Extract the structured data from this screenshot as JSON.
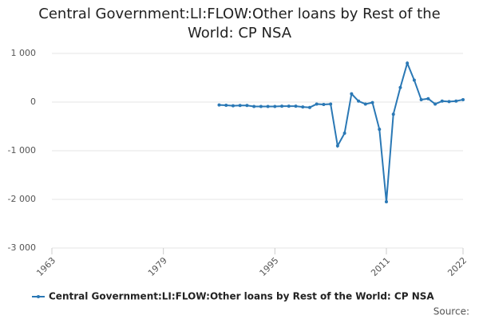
{
  "chart_data": {
    "type": "line",
    "title": "Central Government:LI:FLOW:Other loans by Rest of the World: CP NSA",
    "x": [
      1987,
      1988,
      1989,
      1990,
      1991,
      1992,
      1993,
      1994,
      1995,
      1996,
      1997,
      1998,
      1999,
      2000,
      2001,
      2002,
      2003,
      2004,
      2005,
      2006,
      2007,
      2008,
      2009,
      2010,
      2011,
      2012,
      2013,
      2014,
      2015,
      2016,
      2017,
      2018,
      2019,
      2020,
      2021,
      2022
    ],
    "series": [
      {
        "name": "Central Government:LI:FLOW:Other loans by Rest of the World: CP NSA",
        "color": "#2a78b5",
        "values": [
          -60,
          -65,
          -75,
          -70,
          -70,
          -90,
          -90,
          -90,
          -90,
          -85,
          -85,
          -85,
          -100,
          -110,
          -40,
          -50,
          -40,
          -900,
          -640,
          170,
          20,
          -40,
          -10,
          -560,
          -2050,
          -250,
          300,
          800,
          450,
          50,
          70,
          -40,
          20,
          10,
          20,
          50
        ]
      }
    ],
    "xlim": [
      1963,
      2022
    ],
    "xticks": [
      1963,
      1979,
      1995,
      2011,
      2022
    ],
    "ylim": [
      -3000,
      1000
    ],
    "yticks": [
      {
        "value": -3000,
        "label": "-3 000"
      },
      {
        "value": -2000,
        "label": "-2 000"
      },
      {
        "value": -1000,
        "label": "-1 000"
      },
      0,
      {
        "value": 1000,
        "label": "1 000"
      }
    ],
    "grid": true,
    "legend": "bottom",
    "source": "Source:"
  }
}
